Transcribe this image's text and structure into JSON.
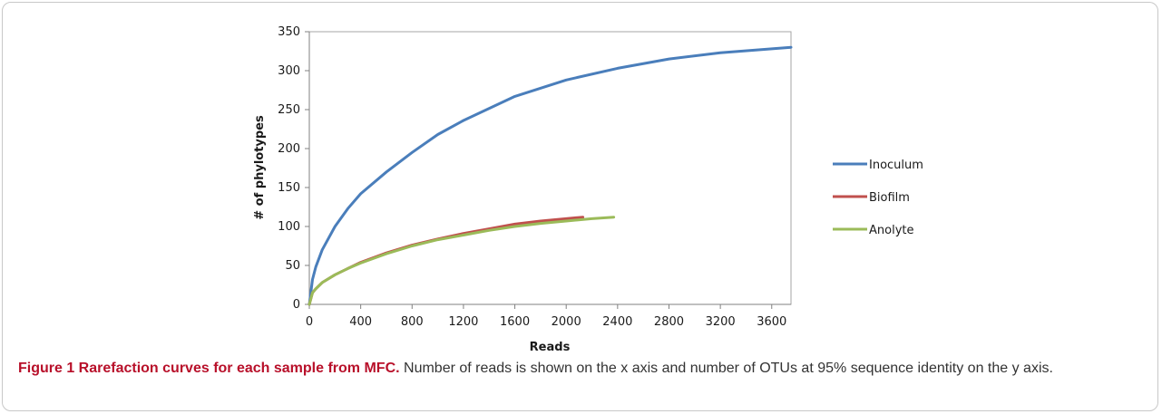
{
  "caption": {
    "title": "Figure 1 Rarefaction curves for each sample from MFC.",
    "text": " Number of reads is shown on the x axis and number of OTUs at 95% sequence identity on the y axis."
  },
  "chart_data": {
    "type": "line",
    "xlabel": "Reads",
    "ylabel": "# of phylotypes",
    "xlim": [
      0,
      3750
    ],
    "ylim": [
      0,
      350
    ],
    "x_ticks": [
      0,
      400,
      800,
      1200,
      1600,
      2000,
      2400,
      2800,
      3200,
      3600
    ],
    "y_ticks": [
      0,
      50,
      100,
      150,
      200,
      250,
      300,
      350
    ],
    "grid": false,
    "legend": "right",
    "series": [
      {
        "name": "Inoculum",
        "color": "#4a7ebb",
        "x": [
          0,
          25,
          50,
          100,
          200,
          300,
          400,
          600,
          800,
          1000,
          1200,
          1600,
          2000,
          2400,
          2800,
          3200,
          3600,
          3750
        ],
        "y": [
          0,
          32,
          48,
          70,
          100,
          123,
          142,
          170,
          195,
          218,
          236,
          267,
          288,
          303,
          315,
          323,
          328,
          330
        ]
      },
      {
        "name": "Biofilm",
        "color": "#c0504d",
        "x": [
          0,
          25,
          50,
          100,
          200,
          300,
          400,
          600,
          800,
          1000,
          1200,
          1400,
          1600,
          1800,
          2000,
          2130
        ],
        "y": [
          0,
          15,
          20,
          28,
          38,
          46,
          54,
          66,
          76,
          84,
          91,
          97,
          103,
          107,
          110,
          112
        ]
      },
      {
        "name": "Anolyte",
        "color": "#9bbb59",
        "x": [
          0,
          25,
          50,
          100,
          200,
          300,
          400,
          600,
          800,
          1000,
          1200,
          1400,
          1600,
          1800,
          2000,
          2200,
          2370
        ],
        "y": [
          0,
          15,
          20,
          28,
          38,
          46,
          53,
          65,
          75,
          83,
          89,
          95,
          100,
          104,
          107,
          110,
          112
        ]
      }
    ]
  }
}
